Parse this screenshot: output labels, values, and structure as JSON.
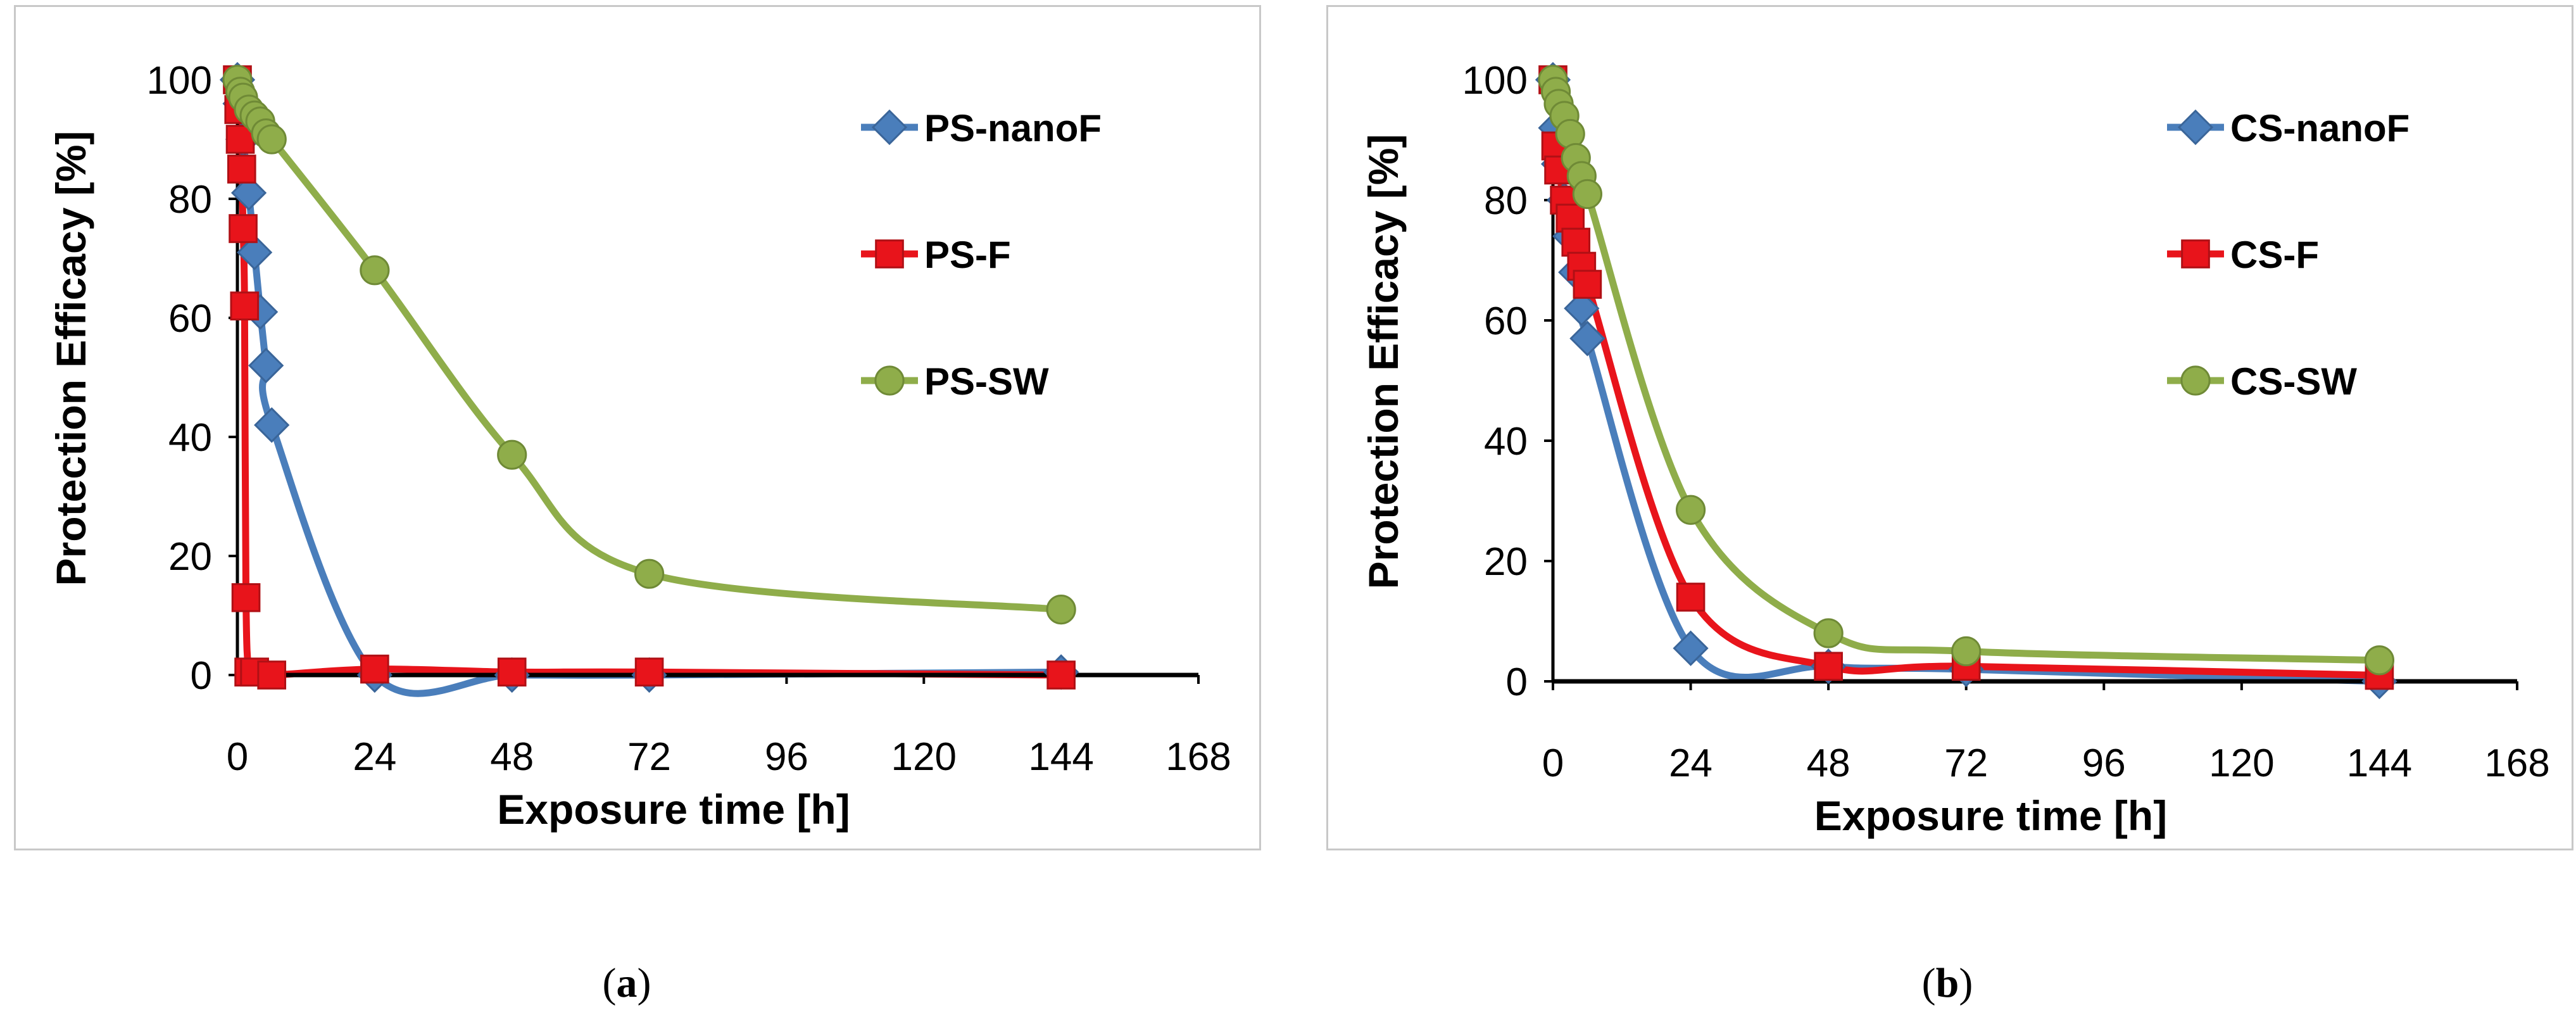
{
  "chart_data": [
    {
      "type": "line",
      "panel": "a",
      "caption": "a",
      "xlabel": "Exposure time [h]",
      "ylabel": "Protection Efficacy  [%]",
      "xlim": [
        0,
        168
      ],
      "ylim": [
        0,
        100
      ],
      "xticks": [
        0,
        24,
        48,
        72,
        96,
        120,
        144,
        168
      ],
      "yticks": [
        0,
        20,
        40,
        60,
        80,
        100
      ],
      "legend_position": "top-right",
      "series": [
        {
          "name": "PS-nanoF",
          "color": "#4a7ebb",
          "marker": "diamond",
          "x": [
            0,
            0.5,
            1,
            2,
            3,
            4,
            5,
            6,
            24,
            48,
            72,
            144
          ],
          "y": [
            100,
            96,
            90,
            81,
            71,
            61,
            52,
            42,
            0,
            0,
            0,
            0.5
          ]
        },
        {
          "name": "PS-F",
          "color": "#e8141b",
          "marker": "square",
          "x": [
            0,
            0.25,
            0.5,
            0.75,
            1,
            1.25,
            1.5,
            2,
            3,
            6,
            24,
            48,
            72,
            144
          ],
          "y": [
            100,
            95,
            90,
            85,
            75,
            62,
            13,
            0.5,
            0.5,
            0,
            1,
            0.5,
            0.5,
            0
          ]
        },
        {
          "name": "PS-SW",
          "color": "#8fad4a",
          "marker": "circle",
          "x": [
            0,
            0.5,
            1,
            2,
            3,
            4,
            5,
            6,
            24,
            48,
            72,
            144
          ],
          "y": [
            100,
            98,
            97,
            95,
            94,
            93,
            91,
            90,
            68,
            37,
            17,
            11
          ]
        }
      ]
    },
    {
      "type": "line",
      "panel": "b",
      "caption": "b",
      "xlabel": "Exposure time [h]",
      "ylabel": "Protection Efficacy  [%]",
      "xlim": [
        0,
        168
      ],
      "ylim": [
        0,
        100
      ],
      "xticks": [
        0,
        24,
        48,
        72,
        96,
        120,
        144,
        168
      ],
      "yticks": [
        0,
        20,
        40,
        60,
        80,
        100
      ],
      "legend_position": "top-right",
      "series": [
        {
          "name": "CS-nanoF",
          "color": "#4a7ebb",
          "marker": "diamond",
          "x": [
            0,
            0.5,
            1,
            2,
            3,
            4,
            5,
            6,
            24,
            48,
            72,
            144
          ],
          "y": [
            100,
            92,
            86,
            80,
            74,
            68,
            62,
            57,
            5.5,
            2.5,
            2,
            0
          ]
        },
        {
          "name": "CS-F",
          "color": "#e8141b",
          "marker": "square",
          "x": [
            0,
            0.5,
            1,
            2,
            3,
            4,
            5,
            6,
            24,
            48,
            72,
            144
          ],
          "y": [
            100,
            89,
            85,
            80,
            77,
            73,
            69,
            66,
            14,
            2.5,
            2.5,
            1
          ]
        },
        {
          "name": "CS-SW",
          "color": "#8fad4a",
          "marker": "circle",
          "x": [
            0,
            0.5,
            1,
            2,
            3,
            4,
            5,
            6,
            24,
            48,
            72,
            144
          ],
          "y": [
            100,
            98,
            96,
            94,
            91,
            87,
            84,
            81,
            28.5,
            8,
            5,
            3.5
          ]
        }
      ]
    }
  ]
}
